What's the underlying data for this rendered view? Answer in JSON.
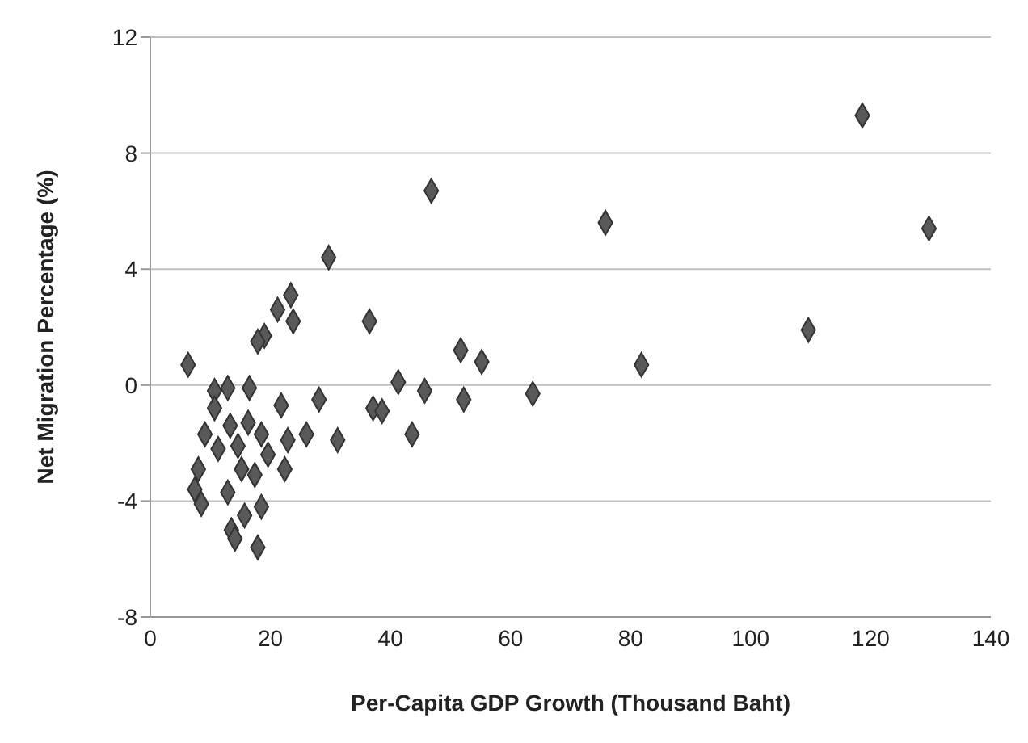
{
  "chart_data": {
    "type": "scatter",
    "xlabel": "Per-Capita GDP Growth (Thousand Baht)",
    "ylabel": "Net Migration Percentage (%)",
    "xlim": [
      0,
      140
    ],
    "xticks": [
      0,
      20,
      40,
      60,
      80,
      100,
      120,
      140
    ],
    "ylim": [
      -8,
      12
    ],
    "yticks": [
      -8,
      -4,
      0,
      4,
      8,
      12
    ],
    "grid": "y",
    "marker": "diamond",
    "legend": false,
    "series": [
      {
        "color": "#595959",
        "x": [
          6.3,
          46.8,
          75.8,
          118.6,
          129.7,
          109.6,
          81.8,
          63.7,
          29.7,
          36.5,
          51.7,
          55.2,
          52.2,
          45.7,
          41.3,
          43.6,
          37.1,
          38.6,
          31.2,
          28.1,
          26.0,
          23.4,
          23.8,
          21.2,
          19.0,
          17.9,
          21.8,
          16.5,
          12.9,
          10.7,
          9.1,
          8.0,
          7.4,
          8.5,
          13.3,
          14.6,
          11.3,
          12.9,
          13.5,
          14.1,
          17.9,
          18.5,
          15.7,
          17.4,
          19.6,
          22.4,
          22.9,
          18.5,
          16.3,
          15.2,
          10.7
        ],
        "values": [
          0.7,
          6.7,
          5.6,
          9.3,
          5.4,
          1.9,
          0.7,
          -0.3,
          4.4,
          2.2,
          1.2,
          0.8,
          -0.5,
          -0.2,
          0.1,
          -1.7,
          -0.8,
          -0.9,
          -1.9,
          -0.5,
          -1.7,
          3.1,
          2.2,
          2.6,
          1.7,
          1.5,
          -0.7,
          -0.1,
          -0.1,
          -0.2,
          -1.7,
          -2.9,
          -3.6,
          -4.1,
          -1.4,
          -2.1,
          -2.2,
          -3.7,
          -5.0,
          -5.3,
          -5.6,
          -4.2,
          -4.5,
          -3.1,
          -2.4,
          -2.9,
          -1.9,
          -1.7,
          -1.3,
          -2.9,
          -0.8
        ]
      }
    ]
  }
}
